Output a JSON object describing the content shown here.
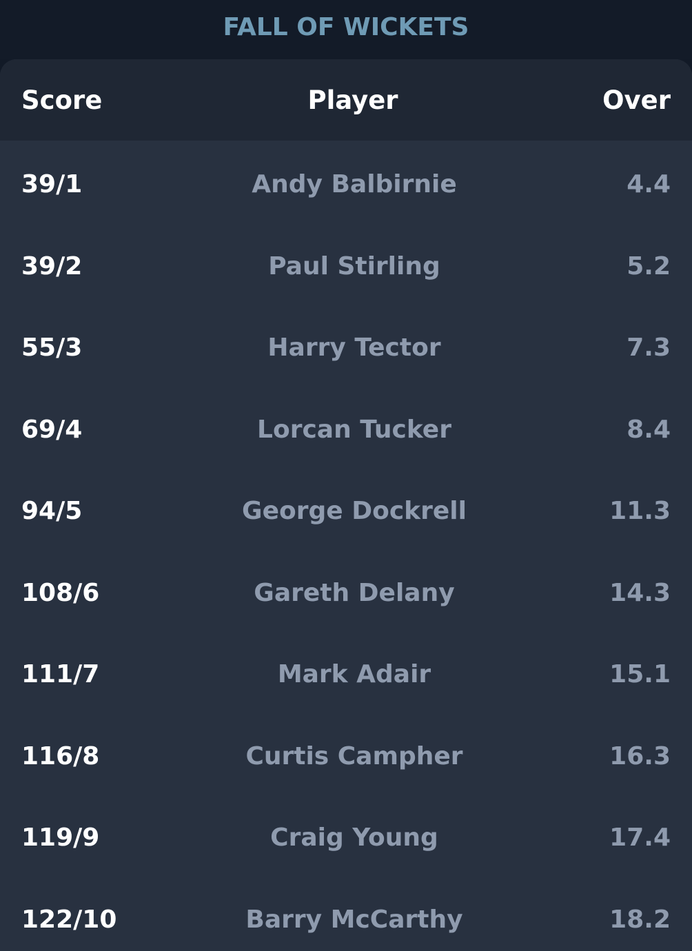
{
  "title": "FALL OF WICKETS",
  "columns": {
    "score": "Score",
    "player": "Player",
    "over": "Over"
  },
  "wickets": [
    {
      "score": "39/1",
      "player": "Andy Balbirnie",
      "over": "4.4"
    },
    {
      "score": "39/2",
      "player": "Paul Stirling",
      "over": "5.2"
    },
    {
      "score": "55/3",
      "player": "Harry Tector",
      "over": "7.3"
    },
    {
      "score": "69/4",
      "player": "Lorcan Tucker",
      "over": "8.4"
    },
    {
      "score": "94/5",
      "player": "George Dockrell",
      "over": "11.3"
    },
    {
      "score": "108/6",
      "player": "Gareth Delany",
      "over": "14.3"
    },
    {
      "score": "111/7",
      "player": "Mark Adair",
      "over": "15.1"
    },
    {
      "score": "116/8",
      "player": "Curtis Campher",
      "over": "16.3"
    },
    {
      "score": "119/9",
      "player": "Craig Young",
      "over": "17.4"
    },
    {
      "score": "122/10",
      "player": "Barry McCarthy",
      "over": "18.2"
    }
  ]
}
